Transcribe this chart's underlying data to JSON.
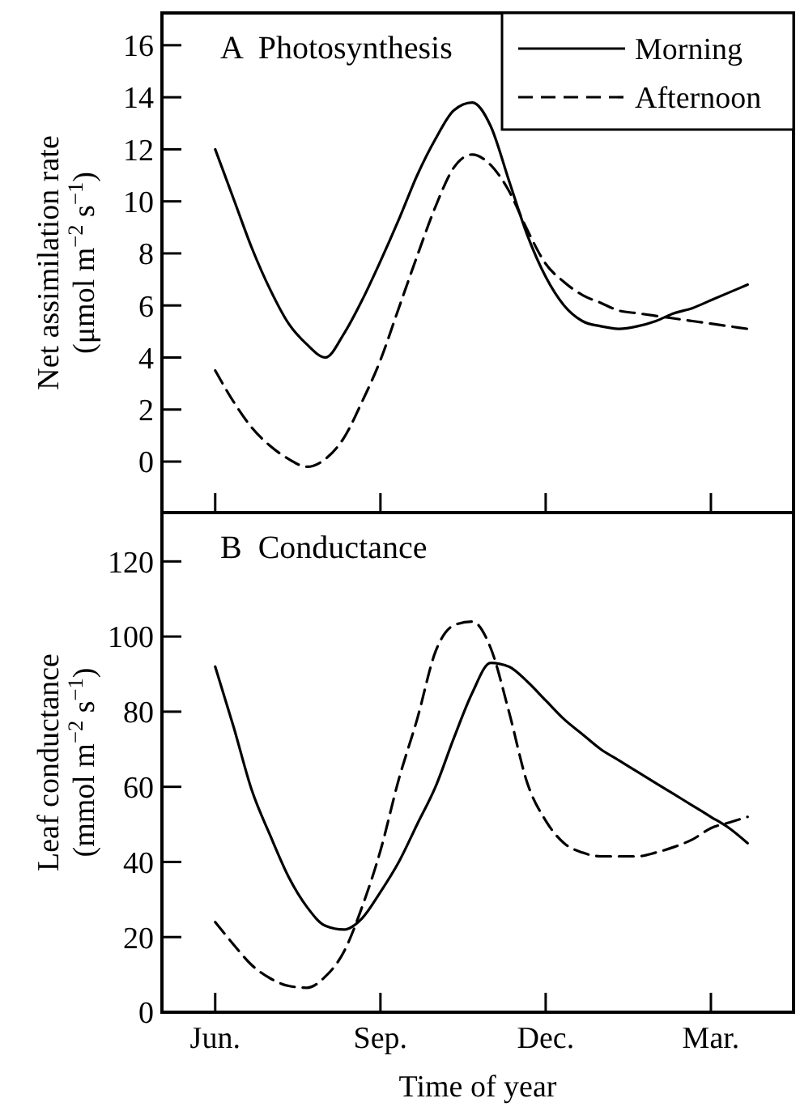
{
  "chart_data": [
    {
      "type": "line",
      "title": "A  Photosynthesis",
      "ylabel": "Net assimilation rate (μmol m$^{−2}$ s$^{−1}$)",
      "categories": [
        null,
        null,
        null,
        null,
        null,
        null,
        null,
        null,
        null,
        null,
        null,
        null,
        null,
        null,
        null,
        null,
        null,
        null,
        null,
        null,
        null,
        null,
        null,
        null,
        null,
        null,
        null,
        null,
        null,
        null
      ],
      "ylim": [
        -1.96,
        17.24
      ],
      "yticks": [
        0,
        2,
        4,
        6,
        8,
        10,
        12,
        14,
        16
      ],
      "tick_labels": "y",
      "legend": "top right",
      "series": [
        {
          "name": "Morning",
          "color": "#000000",
          "line_style": "solid",
          "values": [
            12.0,
            10.1,
            8.2,
            6.6,
            5.3,
            4.5,
            4.0,
            4.9,
            6.2,
            7.7,
            9.3,
            11.0,
            12.4,
            13.5,
            13.8,
            12.9,
            10.8,
            8.7,
            7.1,
            6.0,
            5.4,
            5.2,
            5.1,
            5.2,
            5.4,
            5.7,
            5.9,
            6.2,
            6.5,
            6.8
          ]
        },
        {
          "name": "Afternoon",
          "color": "#000000",
          "line_style": "dashed",
          "values": [
            3.5,
            2.3,
            1.3,
            0.6,
            0.1,
            -0.2,
            0.1,
            0.9,
            2.3,
            3.9,
            5.9,
            7.9,
            9.8,
            11.3,
            11.8,
            11.4,
            10.4,
            8.9,
            7.6,
            6.9,
            6.4,
            6.1,
            5.8,
            5.7,
            5.6,
            5.5,
            5.4,
            5.3,
            5.2,
            5.1
          ]
        }
      ]
    },
    {
      "type": "line",
      "title": "B  Conductance",
      "xlabel": "Time of year",
      "ylabel": "Leaf conductance (mmol m$^{−2}$ s$^{−1}$)",
      "categories": [
        "Jun.",
        null,
        null,
        null,
        null,
        null,
        null,
        null,
        null,
        "Sep.",
        null,
        null,
        null,
        null,
        null,
        null,
        null,
        null,
        "Dec.",
        null,
        null,
        null,
        null,
        null,
        null,
        null,
        null,
        "Mar.",
        null,
        null
      ],
      "ylim": [
        0,
        133
      ],
      "yticks": [
        0,
        20,
        40,
        60,
        80,
        100,
        120
      ],
      "series": [
        {
          "color": "#000000",
          "line_style": "solid",
          "values": [
            92,
            76,
            59,
            47,
            36,
            28,
            23,
            22,
            25,
            32,
            40,
            50,
            60,
            73,
            85,
            93,
            92,
            88,
            83,
            78,
            74,
            70,
            67,
            64,
            61,
            58,
            55,
            52,
            49,
            45
          ]
        },
        {
          "color": "#000000",
          "line_style": "dashed",
          "values": [
            24,
            18,
            12.5,
            9,
            7,
            6.5,
            9.5,
            16,
            28,
            43,
            62,
            78,
            96,
            103,
            104,
            97,
            80,
            61,
            51,
            45,
            42.5,
            41.5,
            41.5,
            41.5,
            42.5,
            44,
            46,
            49,
            50.5,
            52
          ]
        }
      ]
    }
  ]
}
